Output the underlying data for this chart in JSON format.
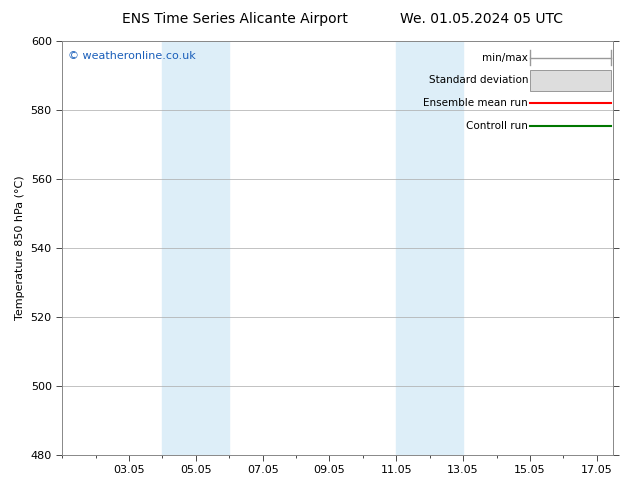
{
  "title_left": "ENS Time Series Alicante Airport",
  "title_right": "We. 01.05.2024 05 UTC",
  "ylabel": "Temperature 850 hPa (°C)",
  "ylim": [
    480,
    600
  ],
  "yticks": [
    480,
    500,
    520,
    540,
    560,
    580,
    600
  ],
  "xlim": [
    1.0,
    17.5
  ],
  "xtick_labels": [
    "03.05",
    "05.05",
    "07.05",
    "09.05",
    "11.05",
    "13.05",
    "15.05",
    "17.05"
  ],
  "xtick_positions": [
    3,
    5,
    7,
    9,
    11,
    13,
    15,
    17
  ],
  "shaded_bands": [
    {
      "x_start": 4.0,
      "x_end": 6.0,
      "color": "#ddeef8",
      "alpha": 1.0
    },
    {
      "x_start": 11.0,
      "x_end": 13.0,
      "color": "#ddeef8",
      "alpha": 1.0
    }
  ],
  "watermark": "© weatheronline.co.uk",
  "watermark_color": "#1a5fba",
  "legend_labels": [
    "min/max",
    "Standard deviation",
    "Ensemble mean run",
    "Controll run"
  ],
  "legend_line_colors": [
    "#999999",
    "#cccccc",
    "#ff0000",
    "#007700"
  ],
  "background_color": "#ffffff",
  "grid_color": "#aaaaaa",
  "title_fontsize": 10,
  "tick_fontsize": 8,
  "ylabel_fontsize": 8,
  "legend_fontsize": 7.5,
  "watermark_fontsize": 8
}
